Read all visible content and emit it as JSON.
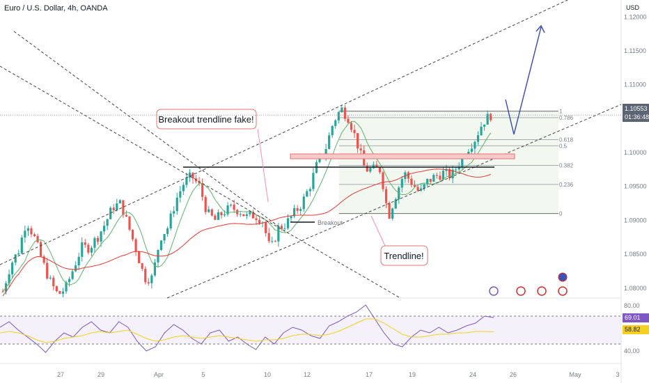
{
  "header": {
    "title": "Euro / U.S. Dollar, 4h, OANDA",
    "currency": "USD"
  },
  "price_tag": {
    "price": "1.10553",
    "countdown": "01:36:48"
  },
  "rsi_tags": {
    "rsi": "69.01",
    "ma": "58.82"
  },
  "fib_levels": [
    {
      "label": "1",
      "price": 1.1061
    },
    {
      "label": "0.786",
      "price": 1.10515
    },
    {
      "label": "0.618",
      "price": 1.1019
    },
    {
      "label": "0.5",
      "price": 1.101
    },
    {
      "label": "0.382",
      "price": 1.0981
    },
    {
      "label": "0.236",
      "price": 1.0953
    },
    {
      "label": "0",
      "price": 1.091
    }
  ],
  "annotations": {
    "fake_breakout": "Breakout trendline fake!",
    "breakout": "Breakout",
    "trendline": "Trendline!"
  },
  "colors": {
    "up": "#26a69a",
    "down": "#ef5350",
    "rsi": "#7e57c2",
    "rsi_ma": "#f5d020",
    "arrow": "#3f51b5"
  },
  "chart_data": [
    {
      "type": "candlestick",
      "title": "Euro / U.S. Dollar, 4h, OANDA",
      "y_axis_ticks": [
        "1.12000",
        "1.11500",
        "1.11000",
        "1.10500",
        "1.10000",
        "1.09500",
        "1.09000",
        "1.08500",
        "1.08000"
      ],
      "ylim": [
        1.077,
        1.1225
      ],
      "x_axis_ticks": [
        "27",
        "29",
        "Apr",
        "5",
        "10",
        "12",
        "17",
        "19",
        "24",
        "26",
        "May",
        "3"
      ],
      "last_price": 1.10553,
      "close_trace": [
        1.0795,
        1.0835,
        1.0855,
        1.09,
        1.0875,
        1.084,
        1.081,
        1.079,
        1.08,
        1.083,
        1.086,
        1.086,
        1.0875,
        1.0895,
        1.092,
        1.0925,
        1.089,
        1.0855,
        1.0815,
        1.0815,
        1.0875,
        1.089,
        1.093,
        1.0955,
        1.0965,
        1.095,
        1.091,
        1.09,
        1.0912,
        1.0918,
        1.0915,
        1.0905,
        1.0908,
        1.09,
        1.0855,
        1.0888,
        1.0895,
        1.091,
        1.0925,
        1.095,
        1.0985,
        1.1005,
        1.1045,
        1.1065,
        1.105,
        1.1015,
        1.0975,
        1.0975,
        1.0975,
        1.0905,
        1.094,
        1.097,
        1.0955,
        1.094,
        1.0958,
        1.0965,
        1.097,
        1.0965,
        1.0985,
        1.1005,
        1.102,
        1.1045,
        1.10553
      ]
    },
    {
      "type": "line",
      "title": "RSI",
      "y_axis_ticks": [
        "80.00",
        "40.00"
      ],
      "ylim": [
        33,
        83
      ],
      "series": [
        {
          "values": [
            62,
            66,
            60,
            55,
            50,
            44,
            52,
            58,
            55,
            62,
            66,
            60,
            58,
            66,
            62,
            52,
            45,
            48,
            58,
            64,
            60,
            54,
            50,
            58,
            60,
            52,
            55,
            50,
            46,
            55,
            50,
            58,
            62,
            60,
            56,
            54,
            63,
            66,
            70,
            73,
            78,
            68,
            58,
            50,
            48,
            55,
            60,
            58,
            62,
            58,
            60,
            63,
            65,
            70,
            69
          ]
        },
        {
          "values": [
            58,
            59,
            58,
            56,
            53,
            51,
            52,
            54,
            55,
            56,
            58,
            59,
            58,
            59,
            60,
            57,
            54,
            52,
            53,
            55,
            56,
            55,
            54,
            55,
            56,
            55,
            54,
            53,
            52,
            53,
            53,
            54,
            56,
            57,
            57,
            56,
            57,
            59,
            62,
            65,
            68,
            68,
            65,
            61,
            57,
            55,
            55,
            56,
            57,
            57,
            58,
            58,
            59,
            59,
            58.82
          ]
        }
      ]
    }
  ]
}
